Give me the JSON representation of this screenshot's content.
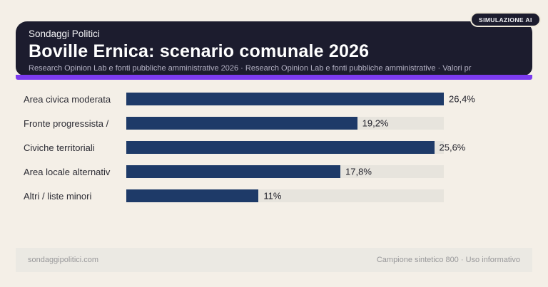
{
  "badge": {
    "label": "SIMULAZIONE AI"
  },
  "header": {
    "kicker": "Sondaggi Politici",
    "title": "Boville Ernica: scenario comunale 2026",
    "subtitle": "Research Opinion Lab e fonti pubbliche amministrative 2026 · Research Opinion Lab e fonti pubbliche amministrative · Valori pr",
    "bg_color": "#1c1c2e",
    "accent_color": "#7c3bf0"
  },
  "chart_data": {
    "type": "bar",
    "orientation": "horizontal",
    "categories": [
      "Area civica moderata",
      "Fronte progressista /",
      "Civiche territoriali",
      "Area locale alternativ",
      "Altri / liste minori"
    ],
    "values": [
      26.4,
      19.2,
      25.6,
      17.8,
      11
    ],
    "value_labels": [
      "26,4%",
      "19,2%",
      "25,6%",
      "17,8%",
      "11%"
    ],
    "xlim": [
      0,
      26.4
    ],
    "grid": false,
    "legend": false,
    "bar_color": "#1e3a68",
    "track_color": "#e7e4dd",
    "title": "Boville Ernica: scenario comunale 2026"
  },
  "footer": {
    "left": "sondaggipolitici.com",
    "right": "Campione sintetico 800 · Uso informativo"
  }
}
